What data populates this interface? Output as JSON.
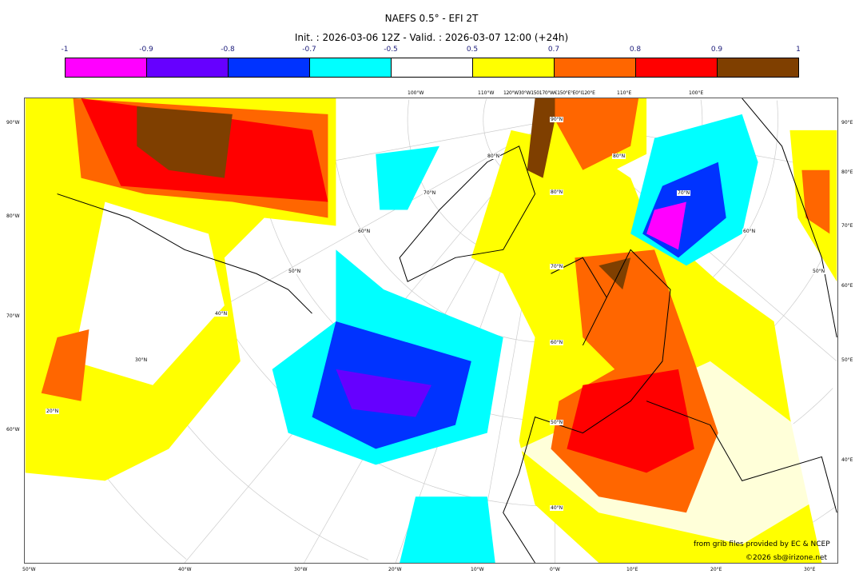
{
  "title": "NAEFS 0.5° - EFI 2T",
  "subtitle": "Init. : 2026-03-06 12Z - Valid. : 2026-03-07 12:00 (+24h)",
  "colorbar": {
    "ticks": [
      "-1",
      "-0.9",
      "-0.8",
      "-0.7",
      "-0.5",
      "0.5",
      "0.7",
      "0.8",
      "0.9",
      "1"
    ],
    "colors": [
      "#ff00ff",
      "#6600ff",
      "#0033ff",
      "#00ffff",
      "#ffffff",
      "#ffff00",
      "#ff6600",
      "#ff0000",
      "#7f3f00"
    ]
  },
  "axes": {
    "top": [
      "100°W",
      "110°W",
      "120°W30°W150170°W€150°E°E0°I120°E",
      "110°E",
      "100°E"
    ],
    "left": [
      "90°W",
      "80°W",
      "70°W",
      "60°W"
    ],
    "right": [
      "90°E",
      "80°E",
      "70°E",
      "60°E",
      "50°E",
      "40°E"
    ],
    "bottom": [
      "50°W",
      "40°W",
      "30°W",
      "20°W",
      "10°W",
      "0°W",
      "10°E",
      "20°E",
      "30°E"
    ],
    "lat": [
      "90°N",
      "80°N",
      "70°N",
      "60°N",
      "50°N",
      "40°N",
      "80°N",
      "70°N",
      "60°N",
      "50°N",
      "40°N",
      "30°N",
      "20°N",
      "80°N",
      "70°N",
      "60°N",
      "50°N"
    ]
  },
  "credits": {
    "line1": "from grib files provided by EC & NCEP",
    "line2": "©2026 sb@irizone.net"
  }
}
